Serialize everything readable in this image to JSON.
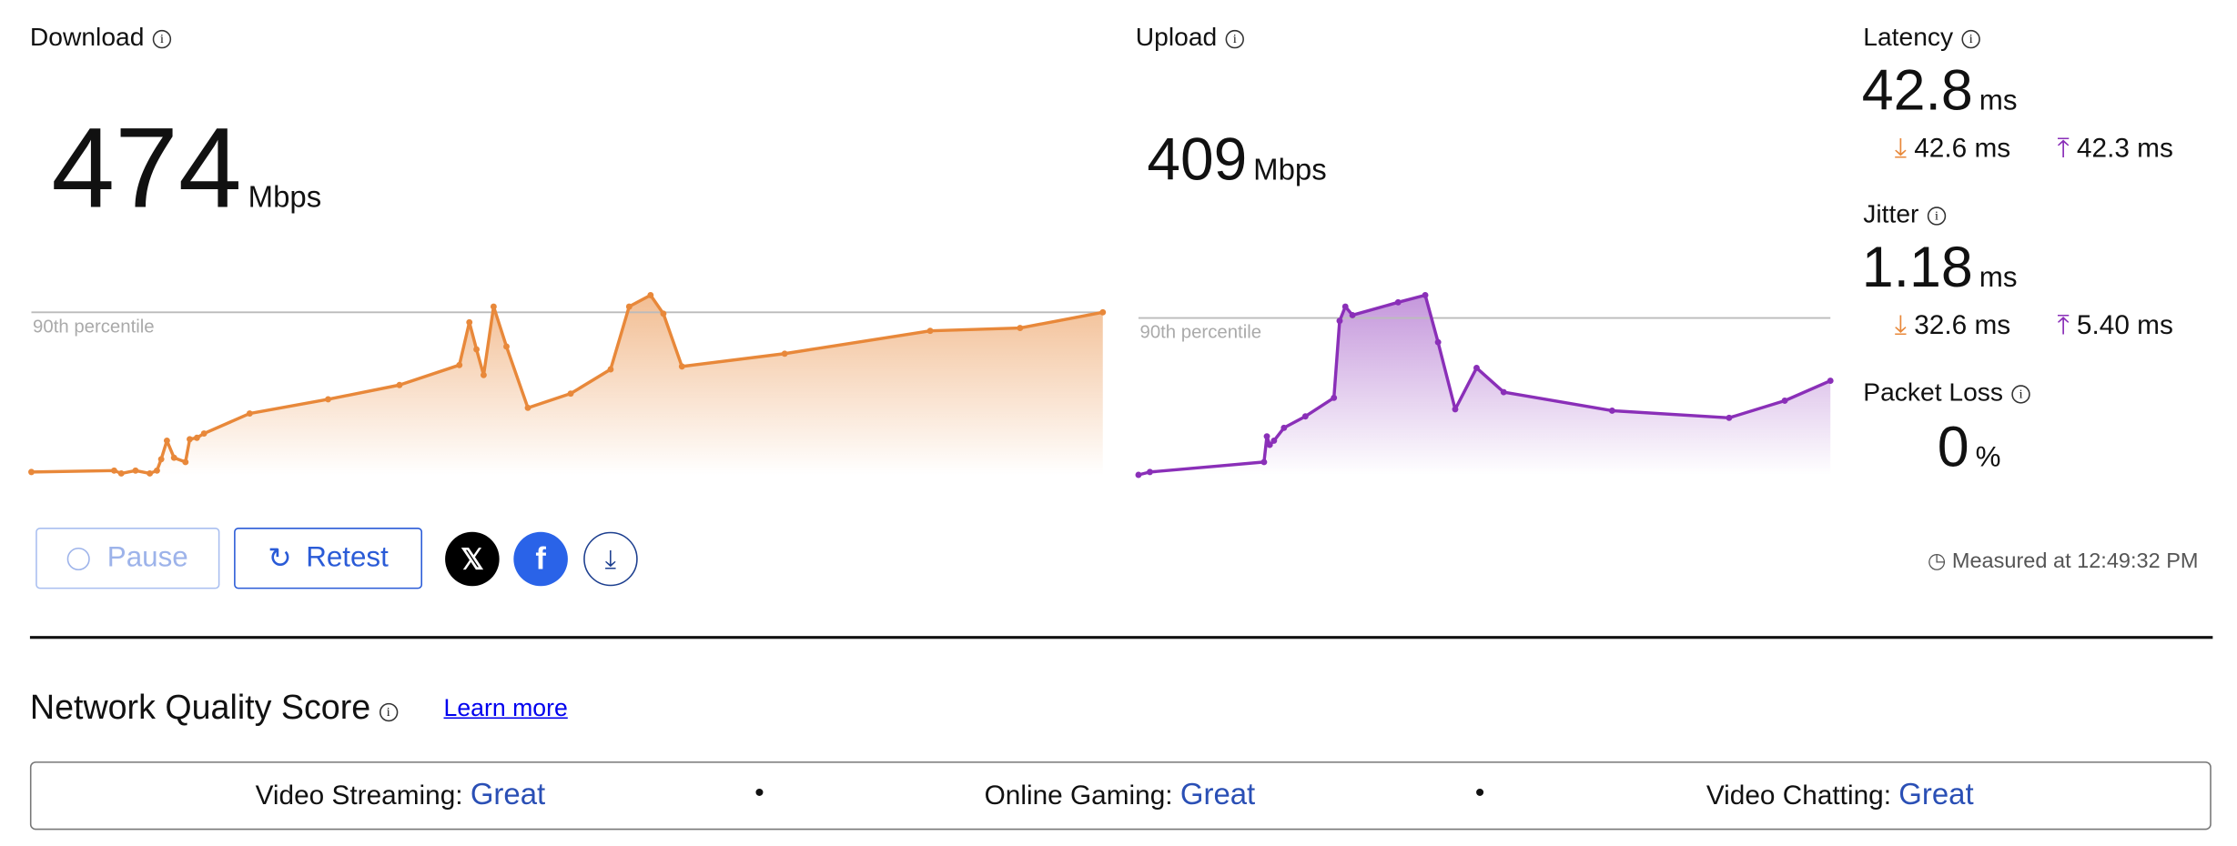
{
  "download": {
    "label": "Download",
    "value": "474",
    "unit": "Mbps",
    "chart": {
      "color": "#e8883a",
      "percentile_label": "90th percentile",
      "p90": 114,
      "xlim": [
        0,
        751
      ],
      "ylim": [
        0,
        130
      ],
      "x": [
        0,
        58,
        63,
        73,
        83,
        88,
        91,
        95,
        100,
        108,
        111,
        116,
        121,
        153,
        208,
        258,
        300,
        307,
        312,
        317,
        324,
        333,
        348,
        378,
        406,
        419,
        434,
        443,
        456,
        528,
        630,
        693,
        751
      ],
      "values": [
        2,
        3,
        1,
        3,
        1,
        3,
        11,
        24,
        12,
        9,
        25,
        26,
        29,
        43,
        53,
        63,
        77,
        107,
        88,
        70,
        118,
        90,
        47,
        57,
        74,
        118,
        126,
        113,
        76,
        85,
        101,
        103,
        114
      ]
    }
  },
  "upload": {
    "label": "Upload",
    "value": "409",
    "unit": "Mbps",
    "chart": {
      "color": "#8a2fb8",
      "percentile_label": "90th percentile",
      "p90": 110,
      "xlim": [
        0,
        485
      ],
      "ylim": [
        0,
        130
      ],
      "x": [
        0,
        8,
        88,
        90,
        92,
        95,
        102,
        117,
        137,
        141,
        145,
        150,
        182,
        201,
        210,
        222,
        237,
        256,
        332,
        414,
        453,
        485
      ],
      "values": [
        0,
        2,
        9,
        27,
        21,
        24,
        33,
        41,
        54,
        108,
        118,
        112,
        121,
        126,
        93,
        46,
        75,
        58,
        45,
        40,
        52,
        66
      ]
    }
  },
  "latency": {
    "label": "Latency",
    "value": "42.8",
    "unit": "ms",
    "down": "42.6 ms",
    "up": "42.3 ms"
  },
  "jitter": {
    "label": "Jitter",
    "value": "1.18",
    "unit": "ms",
    "down": "32.6 ms",
    "up": "5.40 ms"
  },
  "packet_loss": {
    "label": "Packet Loss",
    "value": "0",
    "unit": "%"
  },
  "buttons": {
    "pause": "Pause",
    "retest": "Retest"
  },
  "measured": "Measured at 12:49:32 PM",
  "quality": {
    "title": "Network Quality Score",
    "link": "Learn more",
    "items": [
      {
        "label": "Video Streaming:",
        "rating": "Great"
      },
      {
        "label": "Online Gaming:",
        "rating": "Great"
      },
      {
        "label": "Video Chatting:",
        "rating": "Great"
      }
    ]
  }
}
